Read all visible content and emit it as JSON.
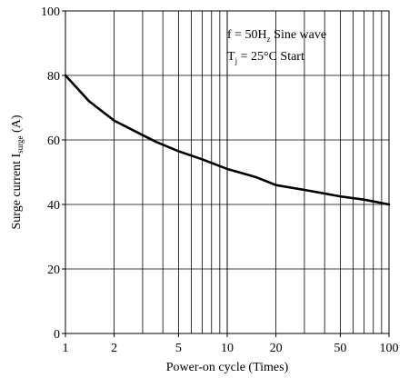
{
  "chart_data": {
    "type": "line",
    "xscale": "log",
    "xlim": [
      1,
      100
    ],
    "ylim": [
      0,
      100
    ],
    "xticks": [
      1,
      2,
      5,
      10,
      20,
      50,
      100
    ],
    "xtick_labels": [
      "1",
      "2",
      "5",
      "10",
      "20",
      "50",
      "100"
    ],
    "yticks": [
      0,
      20,
      40,
      60,
      80,
      100
    ],
    "ytick_labels": [
      "0",
      "20",
      "40",
      "60",
      "80",
      "100"
    ],
    "xlabel": "Power-on cycle (Times)",
    "ylabel": {
      "main": "Surge current I",
      "sub": "surge",
      "unit": " (A)"
    },
    "grid": true,
    "annotations": {
      "line1": {
        "prefix": "f = 50H",
        "sub": "z",
        "suffix": " Sine wave"
      },
      "line2": {
        "prefix": "T",
        "sub": "j",
        "suffix": " = 25°C Start"
      }
    },
    "series": [
      {
        "color": "#000000",
        "x": [
          1,
          1.4,
          2,
          3,
          3.6,
          5,
          7,
          10,
          15,
          20,
          30,
          50,
          70,
          100
        ],
        "y": [
          80,
          72,
          66,
          61.5,
          59.5,
          56.5,
          54,
          51,
          48.5,
          46,
          44.5,
          42.5,
          41.5,
          40
        ]
      }
    ]
  }
}
